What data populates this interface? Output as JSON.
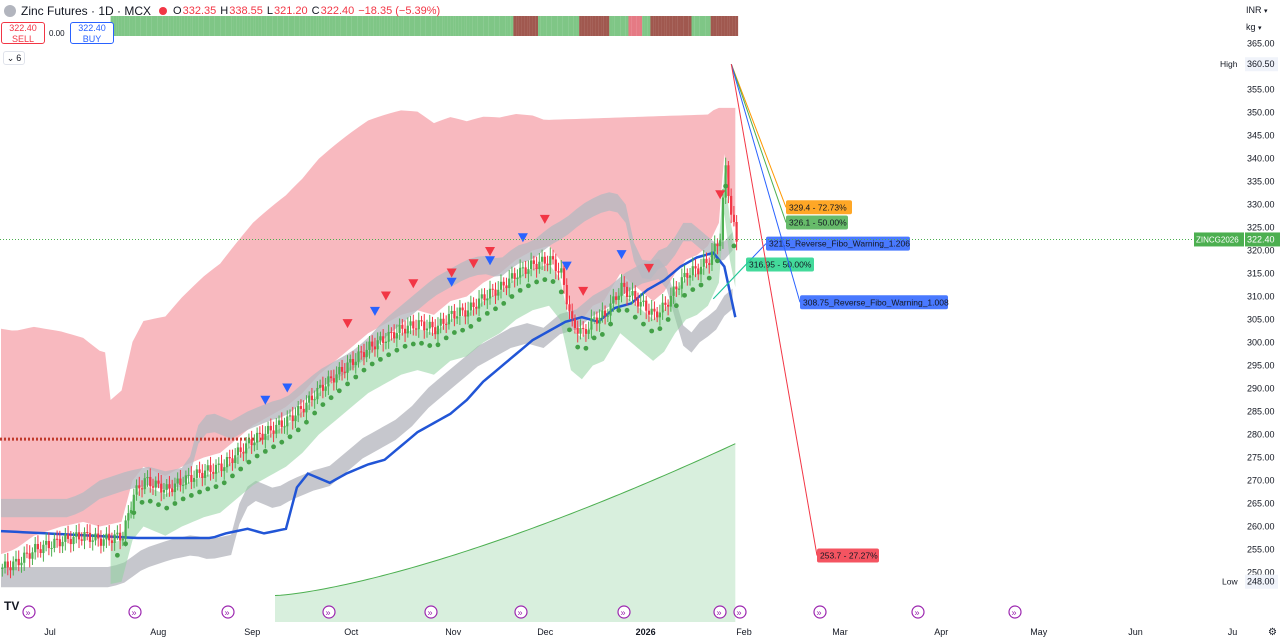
{
  "header": {
    "title": "Zinc Futures · 1D · MCX",
    "ohlc": [
      {
        "label": "O",
        "value": "332.35"
      },
      {
        "label": "H",
        "value": "338.55"
      },
      {
        "label": "L",
        "value": "321.20"
      },
      {
        "label": "C",
        "value": "322.40"
      }
    ],
    "change": "−18.35 (−5.39%)"
  },
  "trade": {
    "sell_price": "322.40",
    "sell_label": "SELL",
    "buy_price": "322.40",
    "buy_label": "BUY",
    "spread": "0.00"
  },
  "indicator_toggle": {
    "count": "6"
  },
  "scale": {
    "currency": "INR",
    "unit": "kg"
  },
  "colors": {
    "up": "#4caf50",
    "down": "#f23645",
    "ma_blue": "#2155d6",
    "cloud_red": "#f5a2aa",
    "cloud_green": "#8fd19e",
    "band_grey": "#b8b9c0"
  },
  "chart_data": {
    "type": "candlestick",
    "symbol": "ZINCG2026",
    "last_price": "322.40",
    "high_label": "High",
    "high_value": "360.50",
    "low_label": "Low",
    "low_value": "248.00",
    "ylim": [
      246,
      368
    ],
    "y_ticks": [
      "250.00",
      "255.00",
      "260.00",
      "265.00",
      "270.00",
      "275.00",
      "280.00",
      "285.00",
      "290.00",
      "295.00",
      "300.00",
      "305.00",
      "310.00",
      "315.00",
      "320.00",
      "325.00",
      "330.00",
      "335.00",
      "340.00",
      "345.00",
      "350.00",
      "355.00",
      "360.00",
      "365.00"
    ],
    "x_ticks": [
      "Jul",
      "Aug",
      "Sep",
      "Oct",
      "Nov",
      "Dec",
      "2026",
      "Feb",
      "Mar",
      "Apr",
      "May",
      "Jun",
      "Ju"
    ],
    "price_path": [
      [
        0,
        251
      ],
      [
        5,
        252
      ],
      [
        12,
        255
      ],
      [
        22,
        257
      ],
      [
        30,
        258
      ],
      [
        36,
        257
      ],
      [
        44,
        258
      ],
      [
        48,
        267
      ],
      [
        52,
        270
      ],
      [
        60,
        268
      ],
      [
        66,
        270
      ],
      [
        74,
        272
      ],
      [
        80,
        273
      ],
      [
        86,
        276
      ],
      [
        92,
        279
      ],
      [
        98,
        281
      ],
      [
        104,
        283
      ],
      [
        110,
        286
      ],
      [
        116,
        290
      ],
      [
        122,
        293
      ],
      [
        128,
        296
      ],
      [
        134,
        299
      ],
      [
        140,
        301
      ],
      [
        146,
        303
      ],
      [
        152,
        304
      ],
      [
        158,
        303
      ],
      [
        164,
        306
      ],
      [
        170,
        307
      ],
      [
        176,
        310
      ],
      [
        182,
        312
      ],
      [
        188,
        315
      ],
      [
        194,
        317
      ],
      [
        200,
        318
      ],
      [
        204,
        315
      ],
      [
        208,
        304
      ],
      [
        212,
        302
      ],
      [
        216,
        305
      ],
      [
        220,
        306
      ],
      [
        226,
        312
      ],
      [
        232,
        309
      ],
      [
        238,
        306
      ],
      [
        242,
        308
      ],
      [
        246,
        312
      ],
      [
        250,
        315
      ],
      [
        254,
        316
      ],
      [
        258,
        318
      ],
      [
        262,
        323
      ],
      [
        264,
        338
      ],
      [
        266,
        328
      ],
      [
        268,
        322
      ]
    ],
    "sell_signals": [
      126,
      140,
      150,
      164,
      172,
      178,
      198,
      212,
      236,
      262
    ],
    "buy_signals": [
      96,
      104,
      136,
      164,
      178,
      190,
      206,
      226
    ],
    "annotations": [
      {
        "label": "329.4 - 72.73%",
        "color": "#ff9800",
        "price": 329.4
      },
      {
        "label": "326.1 - 50.00%",
        "color": "#4caf50",
        "price": 326.1
      },
      {
        "label": "321.5_Reverse_Fibo_Warning_1.206",
        "color": "#2962ff",
        "price": 321.5
      },
      {
        "label": "316.95 - 50.00%",
        "color": "#22d48a",
        "price": 316.95
      },
      {
        "label": "308.75_Reverse_Fibo_Warning_1.008",
        "color": "#2962ff",
        "price": 308.75
      },
      {
        "label": "253.7 - 27.27%",
        "color": "#f23645",
        "price": 253.7
      }
    ]
  }
}
